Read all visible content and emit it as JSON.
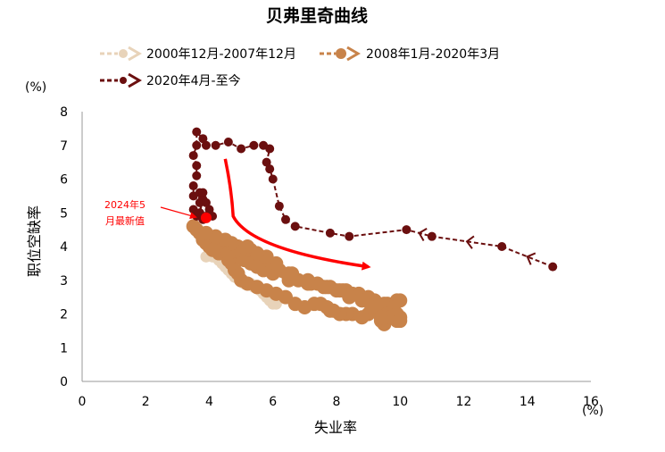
{
  "chart_data": {
    "type": "scatter",
    "title": "贝弗里奇曲线",
    "xlabel": "失业率",
    "ylabel": "职位空缺率",
    "x_unit": "(%)",
    "y_unit": "(%)",
    "xlim": [
      0,
      16
    ],
    "ylim": [
      0,
      8
    ],
    "xticks": [
      0,
      2,
      4,
      6,
      8,
      10,
      12,
      14,
      16
    ],
    "yticks": [
      0,
      1,
      2,
      3,
      4,
      5,
      6,
      7,
      8
    ],
    "grid": false,
    "legend_position": "top",
    "series": [
      {
        "name": "2000年12月-2007年12月",
        "color": "#e8d3b9",
        "style": "dashed-with-dots",
        "points": [
          [
            3.9,
            4.4
          ],
          [
            4.0,
            4.2
          ],
          [
            4.2,
            3.9
          ],
          [
            4.3,
            3.6
          ],
          [
            4.5,
            3.4
          ],
          [
            4.6,
            3.3
          ],
          [
            4.7,
            3.2
          ],
          [
            4.8,
            3.1
          ],
          [
            5.0,
            3.0
          ],
          [
            5.1,
            2.9
          ],
          [
            5.3,
            2.9
          ],
          [
            5.5,
            2.8
          ],
          [
            5.6,
            2.7
          ],
          [
            5.7,
            2.6
          ],
          [
            5.8,
            2.5
          ],
          [
            5.9,
            2.4
          ],
          [
            6.0,
            2.3
          ],
          [
            6.1,
            2.3
          ],
          [
            6.0,
            2.4
          ],
          [
            5.8,
            2.6
          ],
          [
            5.6,
            2.7
          ],
          [
            5.4,
            2.8
          ],
          [
            5.2,
            2.9
          ],
          [
            5.0,
            3.0
          ],
          [
            4.8,
            3.1
          ],
          [
            4.7,
            3.2
          ],
          [
            4.6,
            3.3
          ],
          [
            4.5,
            3.4
          ],
          [
            4.4,
            3.5
          ],
          [
            4.6,
            3.4
          ],
          [
            4.8,
            3.3
          ],
          [
            4.6,
            3.5
          ],
          [
            4.5,
            3.6
          ],
          [
            4.4,
            3.6
          ],
          [
            4.6,
            3.5
          ],
          [
            4.7,
            3.4
          ],
          [
            4.4,
            3.7
          ],
          [
            4.3,
            3.6
          ],
          [
            4.5,
            3.5
          ],
          [
            4.6,
            3.6
          ],
          [
            4.4,
            3.6
          ],
          [
            4.1,
            3.7
          ],
          [
            3.9,
            3.7
          ]
        ]
      },
      {
        "name": "2008年1月-2020年3月",
        "color": "#c8834a",
        "style": "dashed-with-dots",
        "points": [
          [
            5.0,
            3.7
          ],
          [
            5.1,
            3.6
          ],
          [
            5.3,
            3.5
          ],
          [
            5.5,
            3.4
          ],
          [
            5.7,
            3.3
          ],
          [
            6.0,
            3.2
          ],
          [
            6.5,
            3.0
          ],
          [
            7.2,
            2.9
          ],
          [
            7.8,
            2.8
          ],
          [
            8.3,
            2.7
          ],
          [
            8.7,
            2.6
          ],
          [
            9.0,
            2.5
          ],
          [
            9.5,
            2.3
          ],
          [
            9.8,
            2.1
          ],
          [
            10.0,
            1.9
          ],
          [
            9.9,
            1.8
          ],
          [
            9.7,
            2.0
          ],
          [
            9.5,
            2.1
          ],
          [
            9.4,
            2.2
          ],
          [
            9.3,
            2.2
          ],
          [
            9.0,
            2.0
          ],
          [
            8.8,
            1.9
          ],
          [
            8.5,
            2.0
          ],
          [
            8.3,
            2.0
          ],
          [
            8.1,
            2.0
          ],
          [
            7.9,
            2.1
          ],
          [
            7.8,
            2.1
          ],
          [
            7.7,
            2.2
          ],
          [
            7.5,
            2.3
          ],
          [
            7.3,
            2.3
          ],
          [
            7.0,
            2.2
          ],
          [
            6.7,
            2.3
          ],
          [
            6.4,
            2.5
          ],
          [
            6.1,
            2.6
          ],
          [
            5.8,
            2.7
          ],
          [
            5.5,
            2.8
          ],
          [
            5.2,
            2.9
          ],
          [
            5.0,
            3.0
          ],
          [
            4.9,
            3.2
          ],
          [
            4.8,
            3.3
          ],
          [
            4.7,
            3.5
          ],
          [
            4.6,
            3.6
          ],
          [
            4.5,
            3.8
          ],
          [
            4.4,
            3.9
          ],
          [
            4.3,
            4.0
          ],
          [
            4.1,
            4.1
          ],
          [
            4.0,
            4.2
          ],
          [
            3.8,
            4.3
          ],
          [
            3.6,
            4.5
          ],
          [
            3.5,
            4.6
          ],
          [
            3.7,
            4.4
          ],
          [
            3.8,
            4.2
          ],
          [
            3.9,
            4.1
          ],
          [
            4.0,
            4.0
          ],
          [
            4.1,
            3.9
          ],
          [
            4.3,
            3.8
          ],
          [
            4.6,
            3.8
          ],
          [
            5.0,
            3.9
          ],
          [
            5.3,
            3.9
          ],
          [
            5.5,
            3.8
          ],
          [
            5.7,
            3.6
          ],
          [
            6.0,
            3.4
          ],
          [
            6.2,
            3.3
          ],
          [
            6.5,
            3.2
          ],
          [
            6.8,
            3.0
          ],
          [
            7.1,
            2.9
          ],
          [
            7.4,
            2.9
          ],
          [
            7.7,
            2.8
          ],
          [
            8.0,
            2.7
          ],
          [
            8.2,
            2.7
          ],
          [
            8.5,
            2.6
          ],
          [
            8.8,
            2.5
          ],
          [
            9.2,
            2.4
          ],
          [
            9.6,
            2.3
          ],
          [
            9.9,
            2.4
          ],
          [
            10.0,
            2.4
          ],
          [
            9.8,
            2.2
          ],
          [
            9.6,
            2.0
          ],
          [
            9.4,
            1.8
          ],
          [
            9.5,
            1.7
          ],
          [
            9.7,
            1.9
          ],
          [
            9.9,
            2.0
          ],
          [
            10.0,
            1.8
          ],
          [
            9.4,
            1.9
          ],
          [
            9.1,
            2.2
          ],
          [
            8.8,
            2.4
          ],
          [
            8.4,
            2.5
          ],
          [
            8.1,
            2.7
          ],
          [
            7.6,
            2.8
          ],
          [
            7.1,
            3.0
          ],
          [
            6.6,
            3.2
          ],
          [
            6.1,
            3.5
          ],
          [
            5.8,
            3.7
          ],
          [
            5.5,
            3.8
          ],
          [
            5.2,
            4.0
          ],
          [
            4.9,
            4.0
          ],
          [
            4.7,
            4.1
          ],
          [
            4.5,
            4.2
          ],
          [
            4.2,
            4.3
          ],
          [
            3.9,
            4.4
          ]
        ]
      },
      {
        "name": "2020年4月-至今",
        "color": "#6b0f0f",
        "style": "dashed-with-dots",
        "points": [
          [
            14.8,
            3.4
          ],
          [
            13.2,
            4.0
          ],
          [
            11.0,
            4.3
          ],
          [
            10.2,
            4.5
          ],
          [
            8.4,
            4.3
          ],
          [
            7.8,
            4.4
          ],
          [
            6.7,
            4.6
          ],
          [
            6.4,
            4.8
          ],
          [
            6.2,
            5.2
          ],
          [
            6.0,
            6.0
          ],
          [
            5.9,
            6.3
          ],
          [
            5.8,
            6.5
          ],
          [
            5.9,
            6.9
          ],
          [
            5.7,
            7.0
          ],
          [
            5.4,
            7.0
          ],
          [
            5.0,
            6.9
          ],
          [
            4.6,
            7.1
          ],
          [
            4.2,
            7.0
          ],
          [
            3.9,
            7.0
          ],
          [
            3.8,
            7.2
          ],
          [
            3.6,
            7.4
          ],
          [
            3.6,
            7.0
          ],
          [
            3.5,
            6.7
          ],
          [
            3.6,
            6.4
          ],
          [
            3.6,
            6.1
          ],
          [
            3.5,
            5.8
          ],
          [
            3.5,
            5.5
          ],
          [
            3.7,
            5.3
          ],
          [
            3.5,
            5.1
          ],
          [
            3.6,
            4.9
          ],
          [
            3.7,
            5.6
          ],
          [
            3.8,
            5.4
          ],
          [
            3.7,
            5.0
          ],
          [
            3.9,
            4.9
          ],
          [
            3.8,
            4.8
          ],
          [
            3.7,
            5.0
          ],
          [
            3.8,
            5.6
          ],
          [
            3.9,
            5.3
          ],
          [
            4.0,
            5.1
          ],
          [
            4.1,
            4.9
          ]
        ]
      }
    ],
    "latest_point": {
      "x": 3.9,
      "y": 4.85,
      "color": "#ff0000"
    },
    "annotations": [
      {
        "text_lines": [
          "2024年5",
          "月最新值"
        ],
        "color": "#ff0000"
      }
    ],
    "trend_arrow": {
      "color": "#ff0000",
      "path_data_units": [
        [
          4.5,
          6.6
        ],
        [
          4.7,
          5.7
        ],
        [
          4.75,
          4.9
        ],
        [
          5.3,
          3.9
        ],
        [
          9.0,
          3.4
        ]
      ]
    }
  }
}
